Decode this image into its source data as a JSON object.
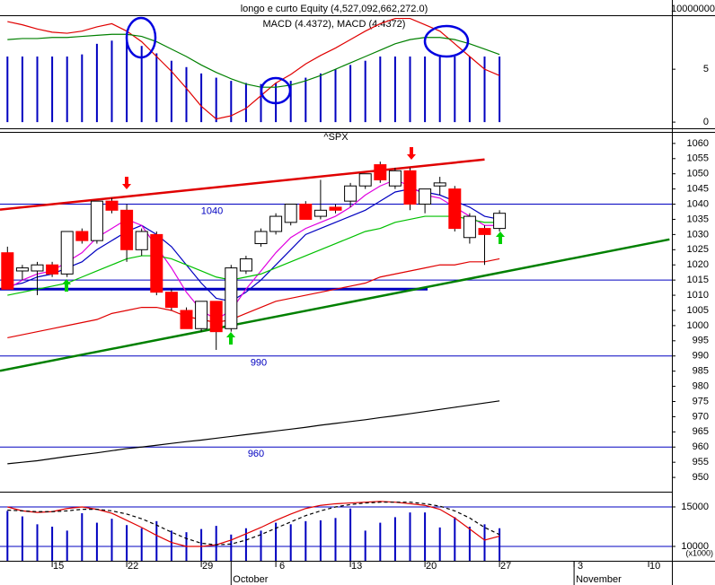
{
  "chart_data": [
    {
      "type": "combo",
      "title": "longo e curto Equity (4,527,092,662,272.0)",
      "subtitle": "MACD (4.4372), MACD (4.4372)",
      "scale_label": "10000000",
      "xlim": [
        -0.5,
        44.5
      ],
      "ylim": [
        -0.5,
        10.1
      ],
      "yticks": [
        0,
        5
      ],
      "series": [
        {
          "kind": "bar",
          "color": "#0000c0",
          "values": [
            6.2,
            6.2,
            6.2,
            6.2,
            6.2,
            6.4,
            7.4,
            7.7,
            7.6,
            7.2,
            6.5,
            5.8,
            5.2,
            4.6,
            4.2,
            3.9,
            3.7,
            3.6,
            3.7,
            3.9,
            4.2,
            4.6,
            5,
            5.4,
            5.8,
            6.2,
            6.2,
            6.2,
            6.2,
            6.2,
            6.2,
            6.2,
            6.2,
            6.2
          ]
        },
        {
          "kind": "line",
          "color": "#e00000",
          "values": [
            9.5,
            9.2,
            8.8,
            8.5,
            8.4,
            8.6,
            9,
            9.3,
            8.6,
            7.6,
            6.2,
            4.8,
            3.2,
            1.5,
            0.3,
            0.6,
            1.3,
            2.5,
            3.7,
            4.5,
            5.5,
            6.3,
            7,
            7.8,
            8.6,
            9.3,
            9.8,
            9.8,
            9.2,
            8.6,
            7.4,
            6.2,
            5,
            4.4
          ]
        },
        {
          "kind": "line",
          "color": "#008000",
          "values": [
            7.8,
            7.9,
            7.9,
            8,
            8,
            8.1,
            8.2,
            8.3,
            8.3,
            8.1,
            7.6,
            6.9,
            6.2,
            5.4,
            4.7,
            4.1,
            3.6,
            3.3,
            3.3,
            3.5,
            3.9,
            4.4,
            5,
            5.6,
            6.2,
            6.8,
            7.4,
            7.8,
            8,
            8,
            7.8,
            7.4,
            6.9,
            6.4
          ]
        }
      ]
    },
    {
      "type": "candlestick",
      "title": "^SPX",
      "xlim": [
        -0.5,
        44.5
      ],
      "ylim": [
        945.3,
        1063.8
      ],
      "yticks": [
        1060,
        1055,
        1050,
        1045,
        1040,
        1035,
        1030,
        1025,
        1020,
        1015,
        1010,
        1005,
        1000,
        995,
        990,
        985,
        980,
        975,
        970,
        965,
        960,
        955,
        950
      ],
      "up_color": "#ffffff",
      "down_color": "#ff0000",
      "open": [
        1024,
        1018,
        1018,
        1020,
        1017,
        1031,
        1028,
        1041,
        1038,
        1025,
        1030,
        1011,
        1005,
        999,
        1008,
        999,
        1018,
        1027,
        1031,
        1034,
        1040,
        1036,
        1039,
        1041,
        1046,
        1053,
        1046,
        1051,
        1040,
        1046,
        1045,
        1029,
        1032,
        1032
      ],
      "high": [
        1026,
        1020,
        1021,
        1021,
        1031,
        1032,
        1041,
        1042,
        1040,
        1032,
        1031,
        1012,
        1006,
        1008,
        1008,
        1020,
        1023,
        1032,
        1037,
        1040,
        1041,
        1048,
        1040,
        1047,
        1050,
        1054,
        1052,
        1052,
        1045,
        1049,
        1046,
        1037,
        1033,
        1038
      ],
      "low": [
        1012,
        1015,
        1010,
        1016,
        1016,
        1027,
        1027,
        1037,
        1021,
        1023,
        1010,
        1005,
        999,
        998,
        992,
        998,
        1017,
        1026,
        1030,
        1033,
        1035,
        1035,
        1037,
        1039,
        1045,
        1047,
        1045,
        1038,
        1037,
        1043,
        1031,
        1027,
        1020,
        1031
      ],
      "close": [
        1012,
        1019,
        1020,
        1017,
        1031,
        1028,
        1041,
        1038,
        1025,
        1031,
        1011,
        1006,
        999,
        1008,
        998,
        1019,
        1022,
        1031,
        1036,
        1040,
        1035,
        1038,
        1038,
        1046,
        1050,
        1048,
        1051,
        1040,
        1045,
        1047,
        1032,
        1036,
        1030,
        1037
      ],
      "series": [
        {
          "kind": "line",
          "color": "#0000c0",
          "values": [
            1013,
            1014,
            1016,
            1017,
            1019,
            1021,
            1025,
            1028,
            1031,
            1033,
            1030,
            1026,
            1020,
            1014,
            1009,
            1008,
            1011,
            1015,
            1020,
            1025,
            1030,
            1032,
            1034,
            1036,
            1038,
            1041,
            1044,
            1045,
            1044,
            1043,
            1041,
            1039,
            1036,
            1035
          ]
        },
        {
          "kind": "line",
          "color": "#e000e0",
          "values": [
            1012,
            1015,
            1017,
            1018,
            1021,
            1024,
            1029,
            1032,
            1035,
            1033,
            1026,
            1019,
            1011,
            1005,
            1002,
            1005,
            1012,
            1018,
            1024,
            1029,
            1032,
            1034,
            1036,
            1039,
            1043,
            1046,
            1048,
            1046,
            1043,
            1042,
            1039,
            1036,
            1033,
            1033
          ]
        },
        {
          "kind": "line",
          "color": "#00c000",
          "values": [
            1010,
            1011,
            1012,
            1013,
            1014,
            1016,
            1018,
            1020,
            1022,
            1023,
            1023,
            1022,
            1020,
            1018,
            1016,
            1015,
            1016,
            1017,
            1019,
            1021,
            1023,
            1025,
            1027,
            1029,
            1031,
            1032,
            1034,
            1035,
            1036,
            1036,
            1036,
            1035,
            1034,
            1034
          ]
        },
        {
          "kind": "line",
          "color": "#e00000",
          "values": [
            996,
            997,
            998,
            999,
            1000,
            1001,
            1002,
            1004,
            1005,
            1006,
            1006,
            1005,
            1003,
            1002,
            1001,
            1002,
            1004,
            1006,
            1008,
            1009,
            1010,
            1011,
            1012,
            1013,
            1014,
            1016,
            1017,
            1018,
            1019,
            1020,
            1020,
            1021,
            1021,
            1022
          ]
        },
        {
          "kind": "line",
          "color": "#000000",
          "values": [
            954.5,
            955,
            955.5,
            956.2,
            956.9,
            957.5,
            958.1,
            958.8,
            959.5,
            960,
            960.6,
            961.2,
            961.8,
            962.3,
            962.9,
            963.5,
            964.1,
            964.7,
            965.3,
            965.9,
            966.5,
            967.2,
            967.8,
            968.4,
            969,
            969.7,
            970.3,
            971,
            971.7,
            972.4,
            973.1,
            973.8,
            974.5,
            975.2
          ]
        }
      ],
      "level_lines": [
        1040,
        990,
        960
      ],
      "support_lines": [
        1015,
        1012
      ],
      "trendlines": [
        {
          "color": "#e00000",
          "x": [
            -0.5,
            32
          ],
          "y": [
            1038.2,
            1054.7
          ]
        },
        {
          "color": "#008000",
          "x": [
            -0.5,
            44.4
          ],
          "y": [
            985.1,
            1028.4
          ]
        }
      ]
    },
    {
      "type": "combo",
      "unit_label": "(x1000)",
      "xlim": [
        -0.5,
        44.5
      ],
      "ylim": [
        8180,
        16930
      ],
      "yticks": [
        15000,
        10000
      ],
      "level_lines": [
        15000,
        10000
      ],
      "xticks": [
        {
          "value": 3,
          "label": "15"
        },
        {
          "value": 8,
          "label": "22"
        },
        {
          "value": 13,
          "label": "29"
        },
        {
          "value": 18,
          "label": "6"
        },
        {
          "value": 23,
          "label": "13"
        },
        {
          "value": 28,
          "label": "20"
        },
        {
          "value": 33,
          "label": "27"
        },
        {
          "value": 38,
          "label": "3"
        },
        {
          "value": 43,
          "label": "10"
        }
      ],
      "month_labels": [
        {
          "value": 15,
          "label": "October"
        },
        {
          "value": 38,
          "label": "November"
        }
      ],
      "series": [
        {
          "kind": "bar",
          "color": "#0000c0",
          "values": [
            14500,
            13800,
            12800,
            12500,
            12000,
            14200,
            13000,
            13500,
            12700,
            12300,
            13200,
            12000,
            11800,
            12200,
            12600,
            11500,
            12300,
            12000,
            13000,
            12800,
            13200,
            13300,
            13600,
            14800,
            12000,
            13000,
            13700,
            14300,
            14300,
            12400,
            13700,
            12500,
            12800,
            12300
          ]
        },
        {
          "kind": "line",
          "color": "#e00000",
          "values": [
            15000,
            14500,
            14300,
            14400,
            14800,
            15000,
            14700,
            14200,
            13300,
            12400,
            11400,
            10500,
            10000,
            10000,
            10200,
            10800,
            11600,
            12400,
            13300,
            14100,
            14800,
            15200,
            15400,
            15500,
            15600,
            15700,
            15600,
            15400,
            15200,
            14700,
            13600,
            12200,
            10800,
            11300
          ]
        },
        {
          "kind": "line",
          "color": "#000000",
          "dashed": true,
          "values": [
            14600,
            14500,
            14400,
            14400,
            14500,
            14700,
            14700,
            14500,
            14100,
            13500,
            12700,
            11800,
            11000,
            10400,
            10200,
            10300,
            10800,
            11500,
            12300,
            13100,
            13900,
            14500,
            15000,
            15300,
            15500,
            15600,
            15600,
            15600,
            15400,
            15100,
            14500,
            13600,
            12400,
            11500
          ]
        }
      ]
    }
  ]
}
